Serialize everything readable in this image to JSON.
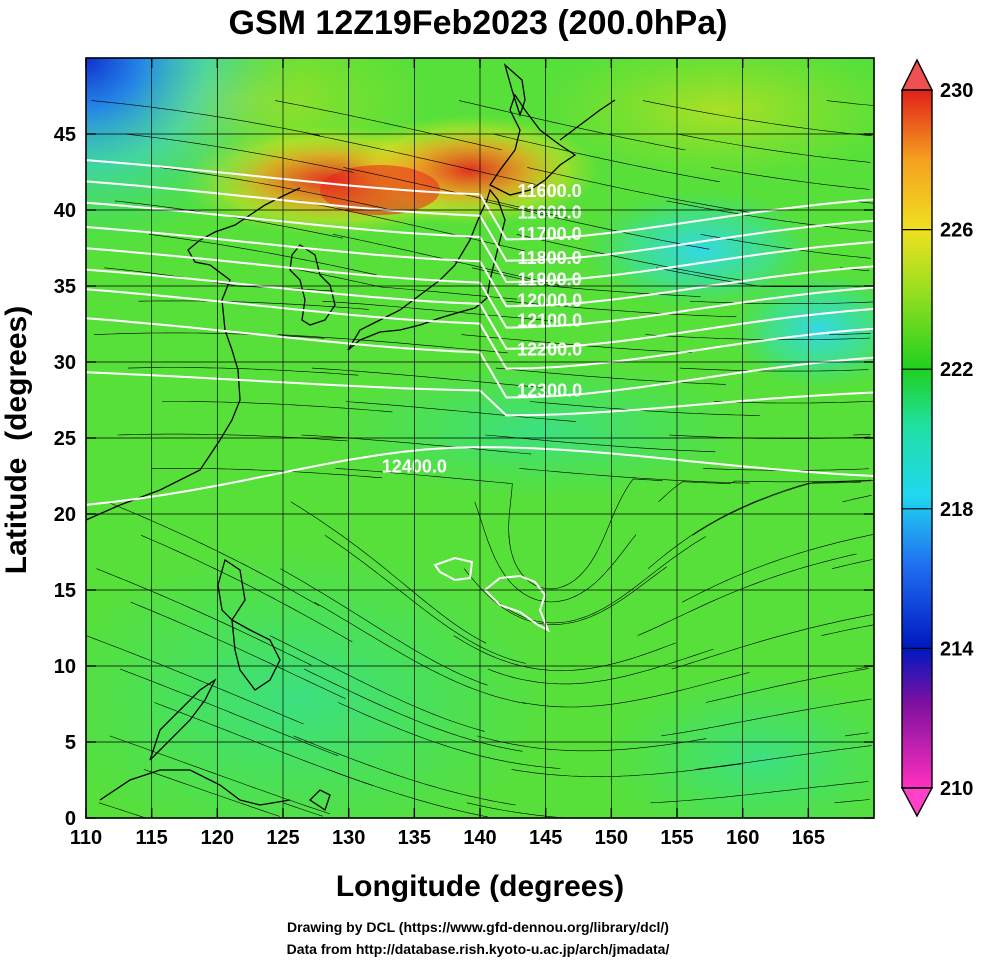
{
  "chart_data": {
    "type": "heatmap",
    "title": "GSM 12Z19Feb2023 (200.0hPa)",
    "xlabel": "Longitude (degrees)",
    "ylabel": "Latitude  (degrees)",
    "xlim": [
      110,
      170
    ],
    "ylim": [
      0,
      50
    ],
    "x_ticks": [
      110,
      115,
      120,
      125,
      130,
      135,
      140,
      145,
      150,
      155,
      160,
      165
    ],
    "y_ticks": [
      0,
      5,
      10,
      15,
      20,
      25,
      30,
      35,
      40,
      45
    ],
    "grid": true,
    "colorbar": {
      "min": 210,
      "max": 230,
      "ticks": [
        210,
        214,
        218,
        222,
        226,
        230
      ],
      "placement": "right"
    },
    "contours": [
      {
        "value": "11600.0",
        "lat_at_140": 41.6
      },
      {
        "value": "11600.0",
        "lat_at_140": 40.2
      },
      {
        "value": "11700.0",
        "lat_at_140": 38.8
      },
      {
        "value": "11800.0",
        "lat_at_140": 37.2
      },
      {
        "value": "11900.0",
        "lat_at_140": 35.8
      },
      {
        "value": "12000.0",
        "lat_at_140": 34.4
      },
      {
        "value": "12100.0",
        "lat_at_140": 33.1
      },
      {
        "value": "12200.0",
        "lat_at_140": 31.2
      },
      {
        "value": "12300.0",
        "lat_at_140": 28.5
      },
      {
        "value": "12400.0",
        "lat_at_140": 24.4
      }
    ],
    "colors": {
      "warm_max": "#e8281e",
      "orange": "#f5a020",
      "yellow": "#f0e020",
      "green": "#20d020",
      "cyan": "#20d8f0",
      "blue": "#2040e0",
      "purple": "#8010a0",
      "magenta": "#ff30c0",
      "contour": "#ffffff",
      "streamline": "#000000"
    }
  },
  "credits": {
    "line1": "Drawing by DCL (https://www.gfd-dennou.org/library/dcl/)",
    "line2": "Data from http://database.rish.kyoto-u.ac.jp/arch/jmadata/"
  }
}
